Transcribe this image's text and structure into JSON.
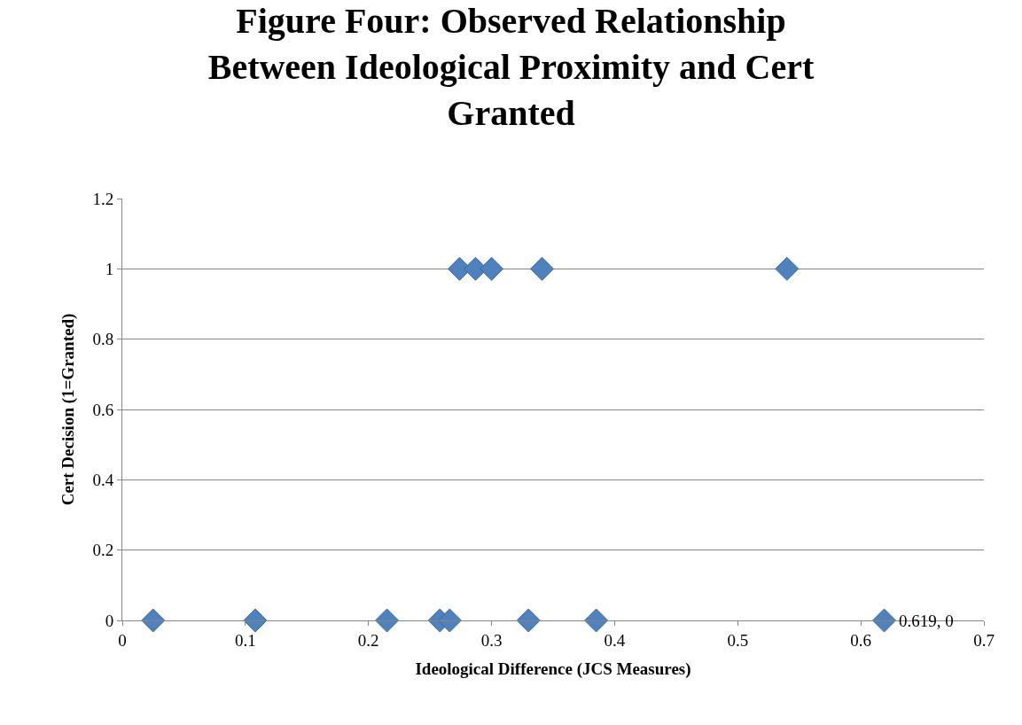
{
  "chart_data": {
    "type": "scatter",
    "title": "Figure Four: Observed Relationship Between Ideological Proximity and Cert Granted",
    "xlabel": "Ideological Difference (JCS Measures)",
    "ylabel": "Cert Decision (1=Granted)",
    "series": [
      {
        "color": "#4f81bd",
        "x": [
          0.025,
          0.108,
          0.215,
          0.258,
          0.266,
          0.33,
          0.385,
          0.619,
          0.274,
          0.287,
          0.3,
          0.341,
          0.54
        ],
        "values": [
          0,
          0,
          0,
          0,
          0,
          0,
          0,
          0,
          1,
          1,
          1,
          1,
          1
        ]
      }
    ],
    "xlim": [
      0,
      0.7
    ],
    "xticks": [
      0,
      0.1,
      0.2,
      0.3,
      0.4,
      0.5,
      0.6,
      0.7
    ],
    "ylim": [
      0,
      1.2
    ],
    "yticks": [
      0,
      0.2,
      0.4,
      0.6,
      0.8,
      1,
      1.2
    ],
    "grid": "y",
    "marker": "diamond",
    "annotations": [
      {
        "text": "0.619, 0",
        "x": 0.619,
        "y": 0
      }
    ]
  }
}
